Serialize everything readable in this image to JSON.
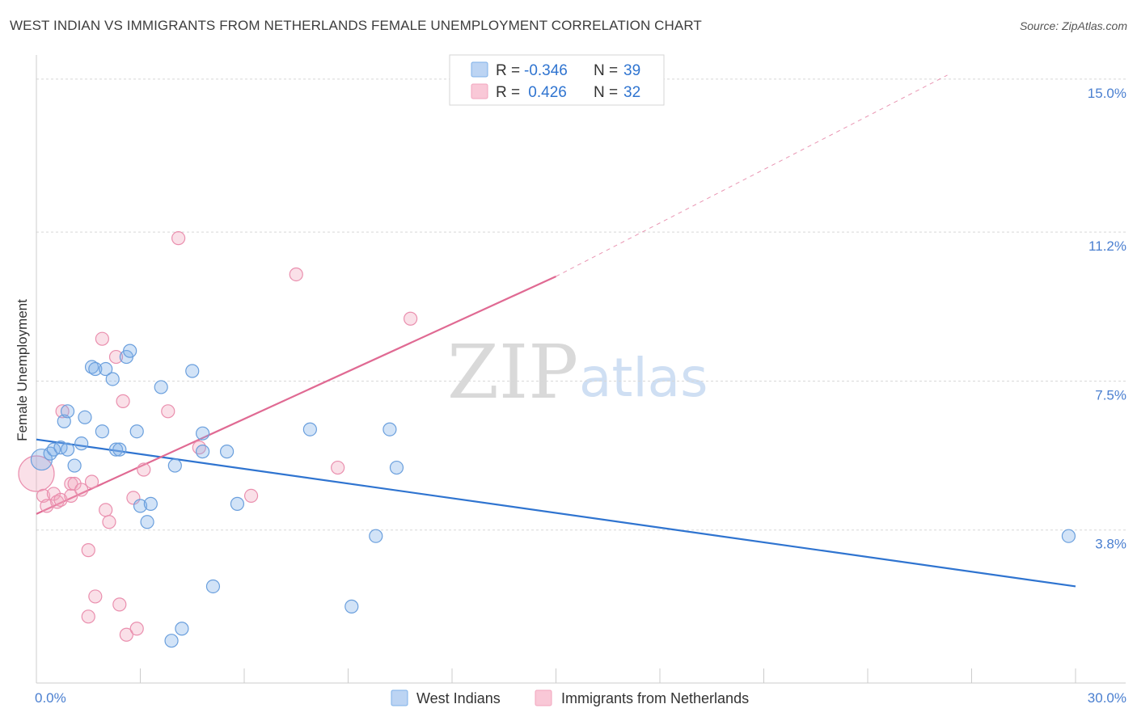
{
  "title": "WEST INDIAN VS IMMIGRANTS FROM NETHERLANDS FEMALE UNEMPLOYMENT CORRELATION CHART",
  "source": "Source: ZipAtlas.com",
  "watermark": {
    "zip": "ZIP",
    "atlas": "atlas"
  },
  "colors": {
    "blue": "#7eb0e8",
    "blue_line": "#2f74d0",
    "pink": "#f2a5be",
    "pink_line": "#e06a93",
    "grid": "#d8d8d8"
  },
  "legend": {
    "rows": [
      {
        "r_label": "R = ",
        "r_value": "-0.346",
        "n_label": "N = ",
        "n_value": "39"
      },
      {
        "r_label": "R = ",
        "r_value": " 0.426",
        "n_label": "N = ",
        "n_value": "32"
      }
    ]
  },
  "chart_data": {
    "type": "scatter",
    "xlabel": "",
    "ylabel": "Female Unemployment",
    "xlim": [
      0,
      30
    ],
    "ylim": [
      0,
      15.4
    ],
    "x_tick_labels": [
      {
        "value": 0,
        "label": "0.0%"
      },
      {
        "value": 30,
        "label": "30.0%"
      }
    ],
    "y_tick_labels": [
      {
        "value": 3.8,
        "label": "3.8%"
      },
      {
        "value": 7.5,
        "label": "7.5%"
      },
      {
        "value": 11.2,
        "label": "11.2%"
      },
      {
        "value": 15.0,
        "label": "15.0%"
      }
    ],
    "x_minor_ticks": [
      3,
      6,
      9,
      12,
      15,
      18,
      21,
      24,
      27,
      30
    ],
    "grid": true,
    "legend_position": "top-center",
    "series": [
      {
        "name": "West Indians",
        "color": "#7eb0e8",
        "regression": {
          "x": [
            0,
            30
          ],
          "y": [
            6.05,
            2.4
          ],
          "extrapolate_to": null
        },
        "points": [
          [
            0.15,
            5.55
          ],
          [
            0.4,
            5.7
          ],
          [
            0.5,
            5.8
          ],
          [
            0.7,
            5.85
          ],
          [
            0.8,
            6.5
          ],
          [
            0.9,
            6.75
          ],
          [
            0.9,
            5.8
          ],
          [
            1.1,
            5.4
          ],
          [
            1.3,
            5.95
          ],
          [
            1.4,
            6.6
          ],
          [
            1.6,
            7.85
          ],
          [
            1.7,
            7.8
          ],
          [
            1.9,
            6.25
          ],
          [
            2.0,
            7.8
          ],
          [
            2.2,
            7.55
          ],
          [
            2.3,
            5.8
          ],
          [
            2.4,
            5.8
          ],
          [
            2.6,
            8.1
          ],
          [
            2.7,
            8.25
          ],
          [
            2.9,
            6.25
          ],
          [
            3.0,
            4.4
          ],
          [
            3.2,
            4.0
          ],
          [
            3.3,
            4.45
          ],
          [
            3.6,
            7.35
          ],
          [
            3.9,
            1.05
          ],
          [
            4.0,
            5.4
          ],
          [
            4.2,
            1.35
          ],
          [
            4.5,
            7.75
          ],
          [
            4.8,
            5.75
          ],
          [
            4.8,
            6.2
          ],
          [
            5.1,
            2.4
          ],
          [
            5.5,
            5.75
          ],
          [
            5.8,
            4.45
          ],
          [
            7.9,
            6.3
          ],
          [
            9.1,
            1.9
          ],
          [
            9.8,
            3.65
          ],
          [
            10.2,
            6.3
          ],
          [
            10.4,
            5.35
          ],
          [
            29.8,
            3.65
          ]
        ]
      },
      {
        "name": "Immigrants from Netherlands",
        "color": "#f2a5be",
        "regression": {
          "x": [
            0,
            15
          ],
          "y": [
            4.2,
            10.1
          ],
          "extrapolate_to": [
            26.3,
            15.1
          ]
        },
        "points": [
          [
            0.0,
            5.2
          ],
          [
            0.2,
            4.65
          ],
          [
            0.3,
            4.4
          ],
          [
            0.5,
            4.7
          ],
          [
            0.6,
            4.5
          ],
          [
            0.7,
            4.55
          ],
          [
            0.75,
            6.75
          ],
          [
            1.0,
            4.95
          ],
          [
            1.0,
            4.65
          ],
          [
            1.1,
            4.95
          ],
          [
            1.3,
            4.8
          ],
          [
            1.5,
            3.3
          ],
          [
            1.5,
            1.65
          ],
          [
            1.6,
            5.0
          ],
          [
            1.7,
            2.15
          ],
          [
            1.9,
            8.55
          ],
          [
            2.0,
            4.3
          ],
          [
            2.1,
            4.0
          ],
          [
            2.3,
            8.1
          ],
          [
            2.4,
            1.95
          ],
          [
            2.5,
            7.0
          ],
          [
            2.6,
            1.2
          ],
          [
            2.8,
            4.6
          ],
          [
            2.9,
            1.35
          ],
          [
            3.1,
            5.3
          ],
          [
            3.8,
            6.75
          ],
          [
            4.1,
            11.05
          ],
          [
            4.7,
            5.85
          ],
          [
            6.2,
            4.65
          ],
          [
            7.5,
            10.15
          ],
          [
            8.7,
            5.35
          ],
          [
            10.8,
            9.05
          ]
        ]
      }
    ]
  }
}
